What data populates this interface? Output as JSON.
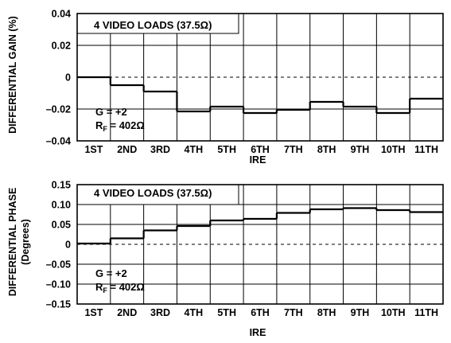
{
  "chart_data": [
    {
      "type": "line",
      "step": true,
      "ylabel": "DIFFERENTIAL GAIN (%)",
      "xlabel": "IRE",
      "categories": [
        "1ST",
        "2ND",
        "3RD",
        "4TH",
        "5TH",
        "6TH",
        "7TH",
        "8TH",
        "9TH",
        "10TH",
        "11TH"
      ],
      "values": [
        0.0,
        -0.005,
        -0.009,
        -0.0215,
        -0.0185,
        -0.0225,
        -0.0205,
        -0.0155,
        -0.0185,
        -0.0225,
        -0.0135
      ],
      "ylim": [
        -0.04,
        0.04
      ],
      "yticks": [
        -0.04,
        -0.02,
        0,
        0.02,
        0.04
      ],
      "ytick_labels": [
        "–0.04",
        "–0.02",
        "0",
        "0.02",
        "0.04"
      ],
      "grid": true,
      "annotations": {
        "loads": "4 VIDEO LOADS (37.5Ω)",
        "gain": "G = +2",
        "rf_prefix": "R",
        "rf_sub": "F",
        "rf_value": " = 402Ω"
      }
    },
    {
      "type": "line",
      "step": true,
      "ylabel": "DIFFERENTIAL PHASE",
      "ylabel_units": "(Degrees)",
      "xlabel": "IRE",
      "categories": [
        "1ST",
        "2ND",
        "3RD",
        "4TH",
        "5TH",
        "6TH",
        "7TH",
        "8TH",
        "9TH",
        "10TH",
        "11TH"
      ],
      "values": [
        0.002,
        0.015,
        0.035,
        0.046,
        0.06,
        0.064,
        0.079,
        0.088,
        0.091,
        0.086,
        0.081
      ],
      "ylim": [
        -0.15,
        0.15
      ],
      "yticks": [
        -0.15,
        -0.1,
        -0.05,
        0,
        0.05,
        0.1,
        0.15
      ],
      "ytick_labels": [
        "–0.15",
        "–0.10",
        "–0.05",
        "0",
        "0.05",
        "0.10",
        "0.15"
      ],
      "grid": true,
      "annotations": {
        "loads": "4 VIDEO LOADS (37.5Ω)",
        "gain": "G = +2",
        "rf_prefix": "R",
        "rf_sub": "F",
        "rf_value": " = 402Ω"
      }
    }
  ]
}
